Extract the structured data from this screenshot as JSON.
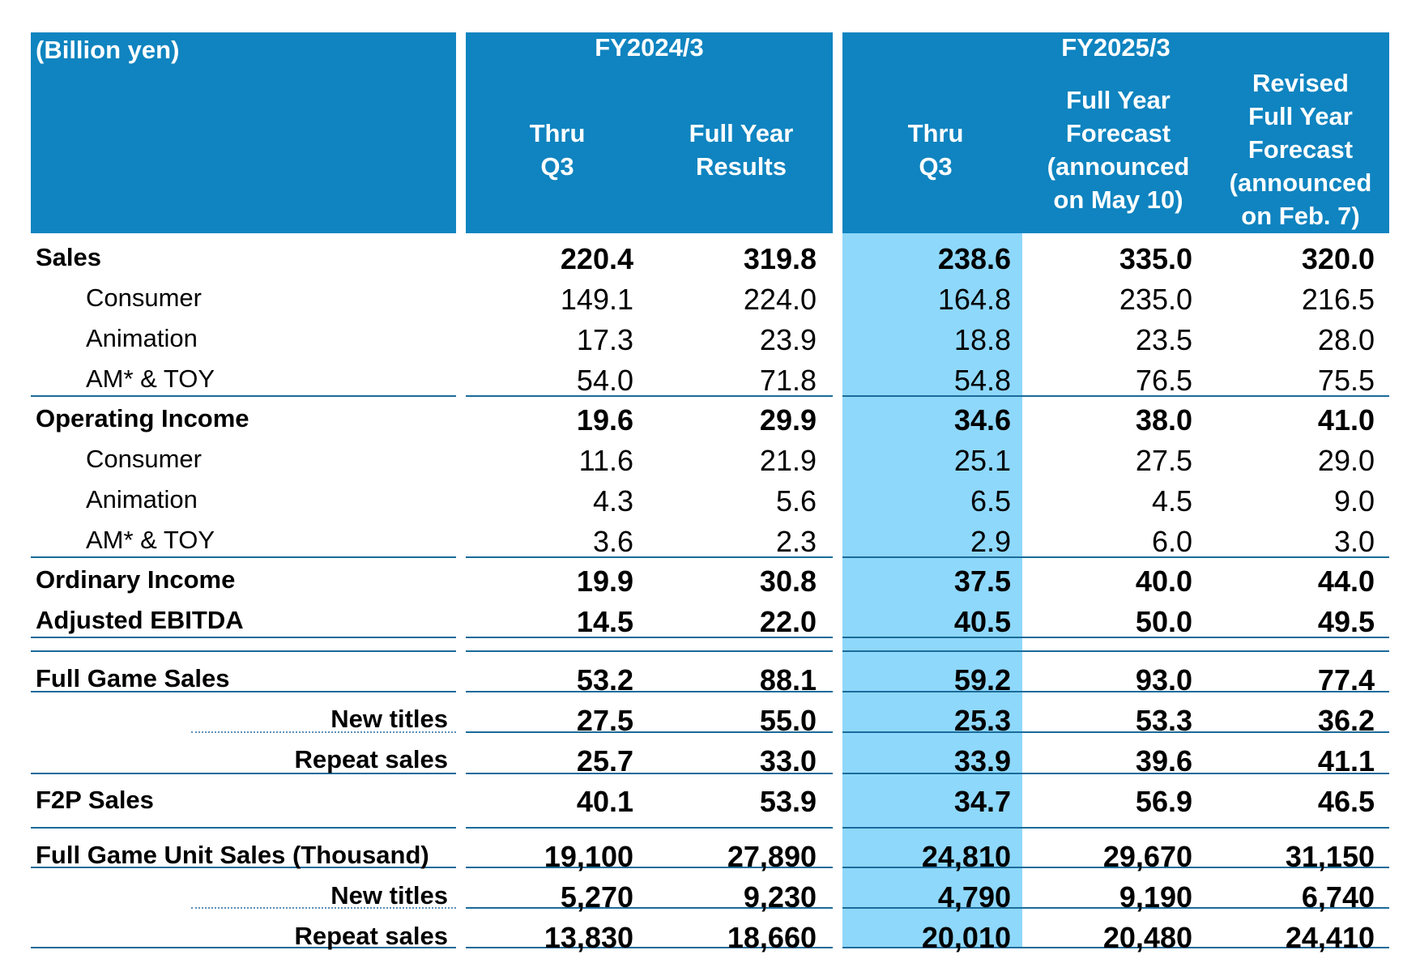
{
  "header": {
    "unit_label": "(Billion yen)",
    "fy2024": {
      "title": "FY2024/3",
      "col1": [
        "Thru",
        "Q3"
      ],
      "col2": [
        "Full Year",
        "Results"
      ]
    },
    "fy2025": {
      "title": "FY2025/3",
      "col1": [
        "Thru",
        "Q3"
      ],
      "col2": [
        "Full Year",
        "Forecast",
        "(announced",
        "on May 10)"
      ],
      "col3": [
        "Revised",
        "Full Year",
        "Forecast",
        "(announced",
        "on Feb. 7)"
      ]
    }
  },
  "rows": [
    {
      "label": "Sales",
      "bold": true,
      "indent": "none",
      "values": [
        "220.4",
        "319.8",
        "238.6",
        "335.0",
        "320.0"
      ]
    },
    {
      "label": "Consumer",
      "bold": false,
      "indent": "sub",
      "values": [
        "149.1",
        "224.0",
        "164.8",
        "235.0",
        "216.5"
      ]
    },
    {
      "label": "Animation",
      "bold": false,
      "indent": "sub",
      "values": [
        "17.3",
        "23.9",
        "18.8",
        "23.5",
        "28.0"
      ]
    },
    {
      "label": "AM* & TOY",
      "bold": false,
      "indent": "sub",
      "values": [
        "54.0",
        "71.8",
        "54.8",
        "76.5",
        "75.5"
      ]
    },
    {
      "label": "Operating Income",
      "bold": true,
      "indent": "none",
      "values": [
        "19.6",
        "29.9",
        "34.6",
        "38.0",
        "41.0"
      ]
    },
    {
      "label": "Consumer",
      "bold": false,
      "indent": "sub",
      "values": [
        "11.6",
        "21.9",
        "25.1",
        "27.5",
        "29.0"
      ]
    },
    {
      "label": "Animation",
      "bold": false,
      "indent": "sub",
      "values": [
        "4.3",
        "5.6",
        "6.5",
        "4.5",
        "9.0"
      ]
    },
    {
      "label": "AM* & TOY",
      "bold": false,
      "indent": "sub",
      "values": [
        "3.6",
        "2.3",
        "2.9",
        "6.0",
        "3.0"
      ]
    },
    {
      "label": "Ordinary Income",
      "bold": true,
      "indent": "none",
      "values": [
        "19.9",
        "30.8",
        "37.5",
        "40.0",
        "44.0"
      ]
    },
    {
      "label": "Adjusted EBITDA",
      "bold": true,
      "indent": "none",
      "values": [
        "14.5",
        "22.0",
        "40.5",
        "50.0",
        "49.5"
      ]
    },
    {
      "label": "Full Game Sales",
      "bold": true,
      "indent": "none",
      "values": [
        "53.2",
        "88.1",
        "59.2",
        "93.0",
        "77.4"
      ]
    },
    {
      "label": "New titles",
      "bold": true,
      "indent": "right",
      "values": [
        "27.5",
        "55.0",
        "25.3",
        "53.3",
        "36.2"
      ]
    },
    {
      "label": "Repeat sales",
      "bold": true,
      "indent": "right",
      "values": [
        "25.7",
        "33.0",
        "33.9",
        "39.6",
        "41.1"
      ]
    },
    {
      "label": "F2P Sales",
      "bold": true,
      "indent": "none",
      "values": [
        "40.1",
        "53.9",
        "34.7",
        "56.9",
        "46.5"
      ]
    },
    {
      "label": "Full Game Unit Sales (Thousand)",
      "bold": true,
      "indent": "none",
      "values": [
        "19,100",
        "27,890",
        "24,810",
        "29,670",
        "31,150"
      ]
    },
    {
      "label": "New titles",
      "bold": true,
      "indent": "right",
      "values": [
        "5,270",
        "9,230",
        "4,790",
        "9,190",
        "6,740"
      ]
    },
    {
      "label": "Repeat sales",
      "bold": true,
      "indent": "right",
      "values": [
        "13,830",
        "18,660",
        "20,010",
        "20,480",
        "24,410"
      ]
    }
  ]
}
